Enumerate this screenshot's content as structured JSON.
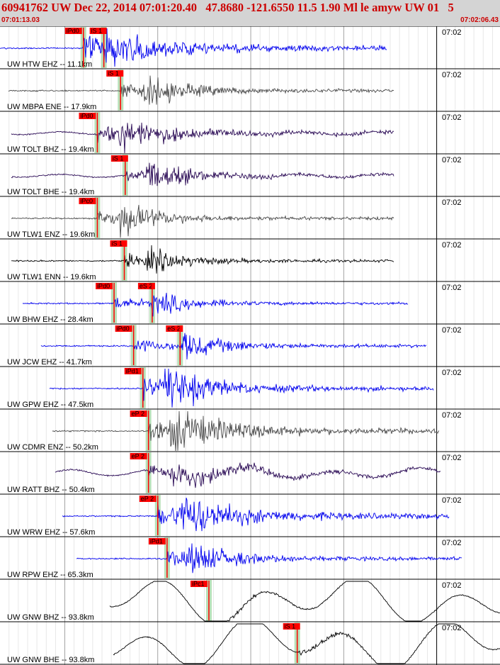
{
  "header": {
    "title": "60941762 UW Dec 22, 2014 07:01:20.40   47.8680 -121.6550 11.5 1.90 Ml le amyw UW 01   5",
    "start_time": "07:01:13.03",
    "end_time": "07:02:06.43"
  },
  "minute_tick_label": "07:02",
  "colors": {
    "blue": "#0000ee",
    "purple": "#2a0a55",
    "gray": "#4a4a4a",
    "black": "#000000",
    "pick_red": "#ff0000",
    "green_band": "#b8e0b8"
  },
  "chart_data": {
    "type": "line",
    "title": "",
    "xlabel": "",
    "ylabel": "",
    "x_axis": "time",
    "xlim": [
      "07:01:13.03",
      "07:02:06.43"
    ],
    "traces": [
      {
        "label": "UW HTW EHZ -- 11.1km",
        "color": "blue",
        "picks": [
          {
            "label": "iPd0",
            "t": "07:01:22.0"
          },
          {
            "label": "iS 1",
            "t": "07:01:24.2"
          }
        ]
      },
      {
        "label": "UW MBPA ENE -- 17.9km",
        "color": "gray",
        "picks": [
          {
            "label": "iS 1",
            "t": "07:01:26.0"
          }
        ]
      },
      {
        "label": "UW TOLT BHZ -- 19.4km",
        "color": "purple",
        "picks": [
          {
            "label": "iPd0",
            "t": "07:01:23.5"
          }
        ]
      },
      {
        "label": "UW TOLT BHE -- 19.4km",
        "color": "purple",
        "picks": [
          {
            "label": "iS 1",
            "t": "07:01:26.5"
          }
        ]
      },
      {
        "label": "UW TLW1 ENZ -- 19.6km",
        "color": "gray",
        "picks": [
          {
            "label": "iPc0",
            "t": "07:01:23.5"
          }
        ]
      },
      {
        "label": "UW TLW1 ENN -- 19.6km",
        "color": "black",
        "picks": [
          {
            "label": "iS 1",
            "t": "07:01:26.4"
          }
        ]
      },
      {
        "label": "UW BHW EHZ -- 28.4km",
        "color": "blue",
        "picks": [
          {
            "label": "iPd0",
            "t": "07:01:25.3"
          },
          {
            "label": "eS 2",
            "t": "07:01:29.4"
          }
        ]
      },
      {
        "label": "UW JCW EHZ -- 41.7km",
        "color": "blue",
        "picks": [
          {
            "label": "iPd0",
            "t": "07:01:27.4"
          },
          {
            "label": "eS 2",
            "t": "07:01:32.4"
          }
        ]
      },
      {
        "label": "UW GPW EHZ -- 47.5km",
        "color": "blue",
        "picks": [
          {
            "label": "iPd1",
            "t": "07:01:28.4"
          }
        ]
      },
      {
        "label": "UW CDMR ENZ -- 50.2km",
        "color": "gray",
        "picks": [
          {
            "label": "eP 2",
            "t": "07:01:29.0"
          }
        ]
      },
      {
        "label": "UW RATT BHZ -- 50.4km",
        "color": "purple",
        "picks": [
          {
            "label": "eP 2",
            "t": "07:01:29.0"
          }
        ]
      },
      {
        "label": "UW WRW EHZ -- 57.6km",
        "color": "blue",
        "picks": [
          {
            "label": "eP 2",
            "t": "07:01:30.0"
          }
        ]
      },
      {
        "label": "UW RPW EHZ -- 65.3km",
        "color": "blue",
        "picks": [
          {
            "label": "iPd1",
            "t": "07:01:31.0"
          }
        ]
      },
      {
        "label": "UW GNW BHZ -- 93.8km",
        "color": "black",
        "picks": [
          {
            "label": "iPc1",
            "t": "07:01:35.5"
          }
        ]
      },
      {
        "label": "UW GNW BHE -- 93.8km",
        "color": "black",
        "picks": [
          {
            "label": "iS 1",
            "t": "07:01:45.0"
          }
        ]
      }
    ]
  }
}
